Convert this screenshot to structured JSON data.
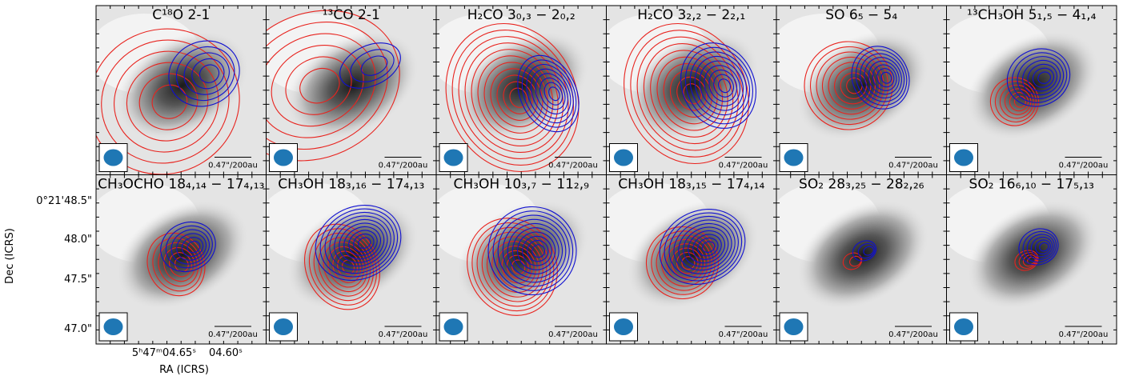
{
  "panels": [
    {
      "title": "C¹⁸O 2-1",
      "scale_bar": "0.47\"/200au"
    },
    {
      "title": "¹³CO 2-1",
      "scale_bar": "0.47\"/200au"
    },
    {
      "title": "H₂CO 3₀,₃ − 2₀,₂",
      "scale_bar": "0.47\"/200au"
    },
    {
      "title": "H₂CO 3₂,₂ − 2₂,₁",
      "scale_bar": "0.47\"/200au"
    },
    {
      "title": "SO 6₅ − 5₄",
      "scale_bar": "0.47\"/200au"
    },
    {
      "title": "¹³CH₃OH 5₁,₅ − 4₁,₄",
      "scale_bar": "0.47\"/200au"
    },
    {
      "title": "CH₃OCHO 18₄,₁₄ − 17₄,₁₃",
      "scale_bar": "0.47\"/200au"
    },
    {
      "title": "CH₃OH 18₃,₁₆ − 17₄,₁₃",
      "scale_bar": "0.47\"/200au"
    },
    {
      "title": "CH₃OH 10₃,₇ − 11₂,₉",
      "scale_bar": "0.47\"/200au"
    },
    {
      "title": "CH₃OH 18₃,₁₅ − 17₄,₁₄",
      "scale_bar": "0.47\"/200au"
    },
    {
      "title": "SO₂ 28₃,₂₅ − 28₂,₂₆",
      "scale_bar": "0.47\"/200au"
    },
    {
      "title": "SO₂ 16₆,₁₀ − 17₅,₁₃",
      "scale_bar": "0.47\"/200au"
    }
  ],
  "y_axis": {
    "label": "Dec (ICRS)",
    "ticks": [
      "0°21'48.5\"",
      "48.0\"",
      "47.5\"",
      "47.0\""
    ]
  },
  "x_axis": {
    "label": "RA (ICRS)",
    "ticks": [
      "5ʰ47ᵐ04.65ˢ",
      "04.60ˢ"
    ]
  }
}
